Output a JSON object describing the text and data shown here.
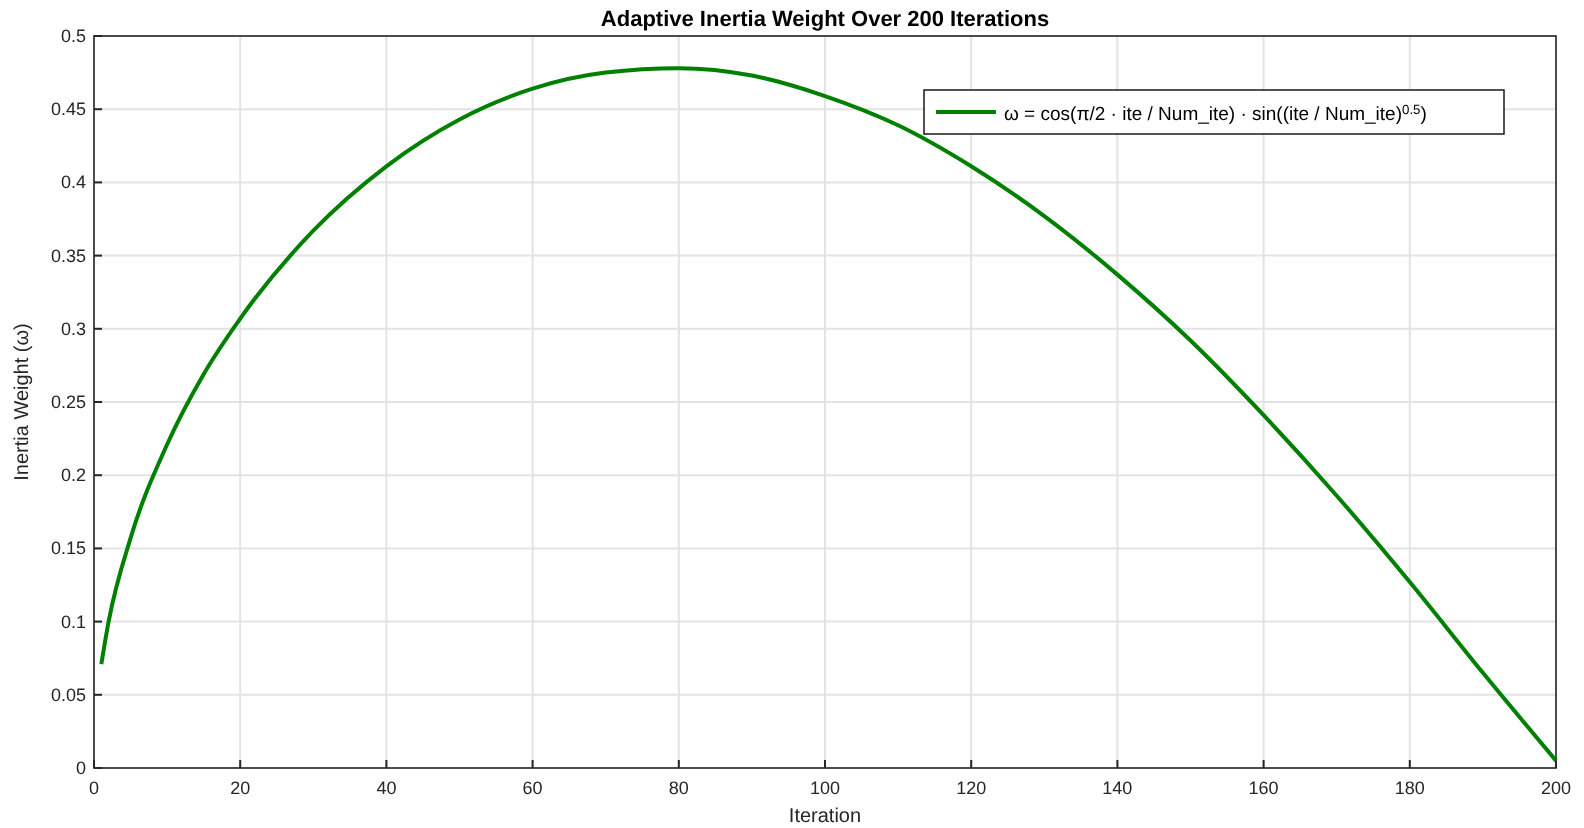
{
  "chart_data": {
    "type": "line",
    "title": "Adaptive Inertia Weight Over 200 Iterations",
    "xlabel": "Iteration",
    "ylabel": "Inertia Weight (ω)",
    "series": [
      {
        "name": "ω = cos(π/2 · ite / Num_ite) · sin((ite / Num_ite)$^{0.5}$)",
        "color": "#008000",
        "x": [
          1,
          2,
          5,
          10,
          15,
          20,
          30,
          40,
          50,
          60,
          70,
          80,
          90,
          100,
          110,
          120,
          130,
          140,
          150,
          160,
          170,
          180,
          190,
          200
        ],
        "values": [
          0.071,
          0.1,
          0.157,
          0.221,
          0.269,
          0.307,
          0.367,
          0.411,
          0.443,
          0.464,
          0.475,
          0.478,
          0.473,
          0.459,
          0.439,
          0.411,
          0.377,
          0.337,
          0.292,
          0.241,
          0.186,
          0.127,
          0.065,
          0.005
        ]
      }
    ],
    "xlim": [
      0,
      200
    ],
    "xticks": [
      0,
      20,
      40,
      60,
      80,
      100,
      120,
      140,
      160,
      180,
      200
    ],
    "ylim": [
      0,
      0.5
    ],
    "yticks": [
      0,
      0.05,
      0.1,
      0.15,
      0.2,
      0.25,
      0.3,
      0.35,
      0.4,
      0.45,
      0.5
    ],
    "grid": true,
    "legend": "top right",
    "line_style": "solid",
    "marker": "none"
  }
}
